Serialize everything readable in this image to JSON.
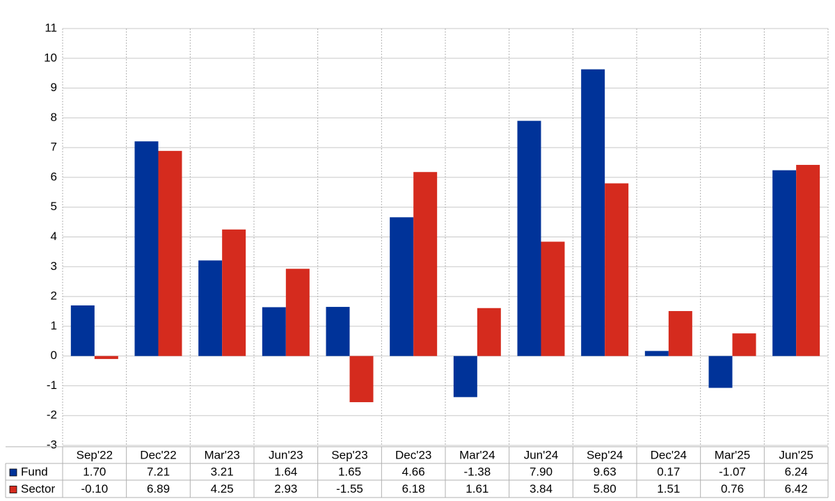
{
  "chart_data": {
    "type": "bar",
    "categories": [
      "Sep'22",
      "Dec'22",
      "Mar'23",
      "Jun'23",
      "Sep'23",
      "Dec'23",
      "Mar'24",
      "Jun'24",
      "Sep'24",
      "Dec'24",
      "Mar'25",
      "Jun'25"
    ],
    "series": [
      {
        "name": "Fund",
        "color": "#003399",
        "values": [
          1.7,
          7.21,
          3.21,
          1.64,
          1.65,
          4.66,
          -1.38,
          7.9,
          9.63,
          0.17,
          -1.07,
          6.24
        ],
        "value_labels": [
          "1.70",
          "7.21",
          "3.21",
          "1.64",
          "1.65",
          "4.66",
          "-1.38",
          "7.90",
          "9.63",
          "0.17",
          "-1.07",
          "6.24"
        ]
      },
      {
        "name": "Sector",
        "color": "#d52b1e",
        "values": [
          -0.1,
          6.89,
          4.25,
          2.93,
          -1.55,
          6.18,
          1.61,
          3.84,
          5.8,
          1.51,
          0.76,
          6.42
        ],
        "value_labels": [
          "-0.10",
          "6.89",
          "4.25",
          "2.93",
          "-1.55",
          "6.18",
          "1.61",
          "3.84",
          "5.80",
          "1.51",
          "0.76",
          "6.42"
        ]
      }
    ],
    "ylim": [
      -3,
      11
    ],
    "yticks": [
      -3,
      -2,
      -1,
      0,
      1,
      2,
      3,
      4,
      5,
      6,
      7,
      8,
      9,
      10,
      11
    ],
    "grid": true
  }
}
